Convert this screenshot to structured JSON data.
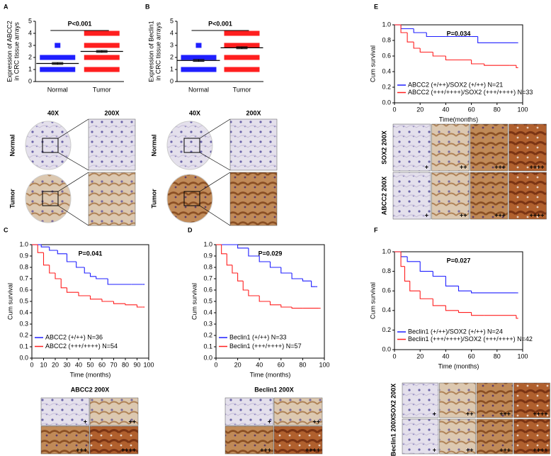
{
  "chart_data": [
    {
      "type": "dot",
      "panel": "A",
      "ylabel": [
        "Expression of ABCC2",
        "in CRC tissue arrays"
      ],
      "annotation": "P<0.001",
      "categories": [
        "Normal",
        "Tumor"
      ],
      "colors": [
        "#1f1fff",
        "#ff1f1f"
      ],
      "levels": [
        [
          1,
          2,
          3
        ],
        [
          1,
          2,
          3,
          4
        ]
      ],
      "means": [
        1.5,
        2.5
      ],
      "sem": [
        0.08,
        0.08
      ],
      "ylim": [
        0,
        5
      ],
      "yticks": [
        0,
        1,
        2,
        3,
        4,
        5
      ]
    },
    {
      "type": "dot",
      "panel": "B",
      "ylabel": [
        "Expression of Beclin1",
        "in CRC tissue arrays"
      ],
      "annotation": "P<0.001",
      "categories": [
        "Normal",
        "Tumor"
      ],
      "colors": [
        "#1f1fff",
        "#ff1f1f"
      ],
      "levels": [
        [
          1,
          2,
          3
        ],
        [
          1,
          2,
          3,
          4
        ]
      ],
      "means": [
        1.75,
        2.8
      ],
      "sem": [
        0.08,
        0.08
      ],
      "ylim": [
        0,
        5
      ],
      "yticks": [
        0,
        1,
        2,
        3,
        4,
        5
      ]
    },
    {
      "type": "survival",
      "panel": "C",
      "title": "P=0.041",
      "xlabel": "Time (months)",
      "ylabel": "Cum survival",
      "xlim": [
        0,
        100
      ],
      "xticks": [
        0,
        10,
        20,
        30,
        40,
        50,
        60,
        70,
        80,
        90,
        100
      ],
      "ylim": [
        0,
        1
      ],
      "yticks": [
        {
          "value": 0,
          "label": "0.0"
        },
        {
          "value": 0.1,
          "label": "0.1"
        },
        {
          "value": 0.2,
          "label": "0.2"
        },
        {
          "value": 0.3,
          "label": "0.3"
        },
        {
          "value": 0.4,
          "label": "0.4"
        },
        {
          "value": 0.5,
          "label": "0.5"
        },
        {
          "value": 0.6,
          "label": "0.6"
        },
        {
          "value": 0.7,
          "label": "0.7"
        },
        {
          "value": 0.8,
          "label": "0.8"
        },
        {
          "value": 0.9,
          "label": "0.9"
        },
        {
          "value": 1,
          "label": "1.0"
        }
      ],
      "series": [
        {
          "name": "ABCC2 (+/++) N=36",
          "color": "#1f1fff",
          "x": [
            0,
            8,
            15,
            22,
            30,
            38,
            45,
            50,
            55,
            65,
            85,
            95
          ],
          "values": [
            1.0,
            0.98,
            0.95,
            0.92,
            0.85,
            0.8,
            0.75,
            0.72,
            0.7,
            0.65,
            0.65,
            0.65
          ]
        },
        {
          "name": "ABCC2 (+++/++++) N=54",
          "color": "#ff1f1f",
          "x": [
            0,
            5,
            10,
            15,
            20,
            25,
            30,
            40,
            50,
            60,
            70,
            80,
            90,
            95
          ],
          "values": [
            1.0,
            0.93,
            0.82,
            0.75,
            0.7,
            0.62,
            0.58,
            0.55,
            0.52,
            0.5,
            0.48,
            0.47,
            0.45,
            0.45
          ]
        }
      ]
    },
    {
      "type": "survival",
      "panel": "D",
      "title": "P=0.029",
      "xlabel": "Time (months)",
      "ylabel": "Cum survival",
      "xlim": [
        0,
        100
      ],
      "xticks": [
        0,
        20,
        40,
        60,
        80,
        100
      ],
      "ylim": [
        0,
        1
      ],
      "yticks": [
        {
          "value": 0,
          "label": "0.0"
        },
        {
          "value": 0.1,
          "label": "0.1"
        },
        {
          "value": 0.2,
          "label": "0.2"
        },
        {
          "value": 0.3,
          "label": "0.3"
        },
        {
          "value": 0.4,
          "label": "0.4"
        },
        {
          "value": 0.5,
          "label": "0.5"
        },
        {
          "value": 0.6,
          "label": "0.6"
        },
        {
          "value": 0.7,
          "label": "0.7"
        },
        {
          "value": 0.8,
          "label": "0.8"
        },
        {
          "value": 0.9,
          "label": "0.9"
        },
        {
          "value": 1,
          "label": "1.0"
        }
      ],
      "series": [
        {
          "name": "Beclin1 (+/++) N=33",
          "color": "#1f1fff",
          "x": [
            0,
            20,
            30,
            40,
            50,
            60,
            70,
            80,
            88,
            92
          ],
          "values": [
            1.0,
            0.97,
            0.9,
            0.85,
            0.8,
            0.75,
            0.7,
            0.68,
            0.63,
            0.63
          ]
        },
        {
          "name": "Beclin1 (+++/++++) N=57",
          "color": "#ff1f1f",
          "x": [
            0,
            5,
            10,
            15,
            20,
            25,
            30,
            40,
            50,
            60,
            70,
            80,
            95
          ],
          "values": [
            1.0,
            0.92,
            0.82,
            0.75,
            0.68,
            0.6,
            0.55,
            0.5,
            0.47,
            0.45,
            0.44,
            0.44,
            0.44
          ]
        }
      ]
    },
    {
      "type": "survival",
      "panel": "E",
      "title": "P=0.034",
      "xlabel": "Time(months)",
      "ylabel": "Cum survival",
      "xlim": [
        0,
        100
      ],
      "xticks": [
        0,
        20,
        40,
        60,
        80,
        100
      ],
      "ylim": [
        0,
        1
      ],
      "yticks": [
        {
          "value": 0,
          "label": "0.0"
        },
        {
          "value": 0.2,
          "label": "0.2"
        },
        {
          "value": 0.4,
          "label": "0.4"
        },
        {
          "value": 0.6,
          "label": "0.6"
        },
        {
          "value": 0.8,
          "label": "0.8"
        },
        {
          "value": 1,
          "label": "1.0"
        }
      ],
      "series": [
        {
          "name": "ABCC2 (+/++)/SOX2 (+/++) N=21",
          "color": "#1f1fff",
          "x": [
            0,
            5,
            15,
            25,
            40,
            60,
            65,
            95
          ],
          "values": [
            1.0,
            0.95,
            0.9,
            0.85,
            0.85,
            0.85,
            0.77,
            0.77
          ]
        },
        {
          "name": "ABCC2 (+++/++++)/SOX2 (+++/++++) N=33",
          "color": "#ff1f1f",
          "x": [
            0,
            5,
            10,
            15,
            20,
            30,
            40,
            60,
            70,
            90,
            95
          ],
          "values": [
            1.0,
            0.9,
            0.78,
            0.7,
            0.65,
            0.6,
            0.55,
            0.5,
            0.48,
            0.48,
            0.45
          ]
        }
      ]
    },
    {
      "type": "survival",
      "panel": "F",
      "title": "P=0.027",
      "xlabel": "Time (months)",
      "ylabel": "Cum survival",
      "xlim": [
        0,
        100
      ],
      "xticks": [
        0,
        20,
        40,
        60,
        80,
        100
      ],
      "ylim": [
        0,
        1
      ],
      "yticks": [
        {
          "value": 0,
          "label": "0.0"
        },
        {
          "value": 0.2,
          "label": "0.2"
        },
        {
          "value": 0.4,
          "label": "0.4"
        },
        {
          "value": 0.6,
          "label": "0.6"
        },
        {
          "value": 0.8,
          "label": "0.8"
        },
        {
          "value": 1,
          "label": "1.0"
        }
      ],
      "series": [
        {
          "name": "Beclin1 (+/++)/SOX2 (+/++) N=24",
          "color": "#1f1fff",
          "x": [
            0,
            5,
            10,
            20,
            30,
            40,
            50,
            60,
            95
          ],
          "values": [
            1.0,
            0.95,
            0.9,
            0.8,
            0.75,
            0.65,
            0.6,
            0.58,
            0.58
          ]
        },
        {
          "name": "Beclin1 (+++/++++)/SOX2 (+++/++++) N=42",
          "color": "#ff1f1f",
          "x": [
            0,
            5,
            8,
            12,
            20,
            30,
            40,
            50,
            60,
            70,
            95
          ],
          "values": [
            1.0,
            0.85,
            0.7,
            0.6,
            0.52,
            0.45,
            0.4,
            0.38,
            0.35,
            0.35,
            0.32
          ]
        }
      ]
    }
  ],
  "ihc": {
    "a_mag": [
      "40X",
      "200X"
    ],
    "a_rows": [
      "Normal",
      "Tumor"
    ],
    "b_mag": [
      "40X",
      "200X"
    ],
    "b_rows": [
      "Normal",
      "Tumor"
    ],
    "c_title": "ABCC2 200X",
    "d_title": "Beclin1 200X",
    "e_rows": [
      "SOX2 200X",
      "ABCC2 200X"
    ],
    "f_rows": [
      "SOX2 200X",
      "Beclin1 200X"
    ],
    "grades": [
      "+",
      "++",
      "+++",
      "++++"
    ]
  }
}
